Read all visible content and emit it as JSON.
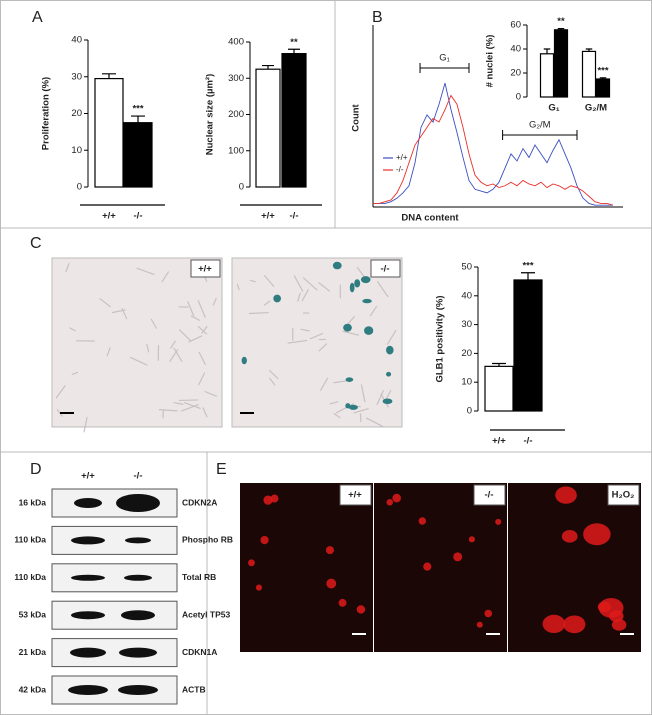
{
  "panel_labels": [
    "A",
    "B",
    "C",
    "D",
    "E"
  ],
  "chart_data": [
    {
      "type": "bar",
      "ylabel": "Proliferation (%)",
      "categories": [
        "+/+",
        "-/-"
      ],
      "values": [
        29.5,
        17.5
      ],
      "errors": [
        1.3,
        1.8
      ],
      "colors": [
        "#ffffff",
        "#000000"
      ],
      "annotations": [
        null,
        "***"
      ],
      "ylim": [
        0,
        40
      ],
      "yticks": [
        0,
        10,
        20,
        30,
        40
      ]
    },
    {
      "type": "bar",
      "ylabel": "Nuclear size (µm²)",
      "categories": [
        "+/+",
        "-/-"
      ],
      "values": [
        325,
        368
      ],
      "errors": [
        10,
        12
      ],
      "colors": [
        "#ffffff",
        "#000000"
      ],
      "annotations": [
        null,
        "**"
      ],
      "ylim": [
        0,
        400
      ],
      "yticks": [
        0,
        100,
        200,
        300,
        400
      ]
    },
    {
      "type": "line",
      "ylabel": "Count",
      "xlabel": "DNA content",
      "xlim": [
        0,
        100
      ],
      "ylim": [
        0,
        100
      ],
      "x": [
        0,
        2.5,
        5,
        7.5,
        10,
        12.5,
        15,
        17.5,
        20,
        22.5,
        25,
        27.5,
        30,
        32.5,
        35,
        37.5,
        40,
        42.5,
        45,
        47.5,
        50,
        52.5,
        55,
        57.5,
        60,
        62.5,
        65,
        67.5,
        70,
        72.5,
        75,
        77.5,
        80,
        82.5,
        85,
        87.5,
        90,
        92.5,
        95,
        97.5,
        100
      ],
      "series": [
        {
          "name": "+/+",
          "color": "#3a4fc0",
          "values": [
            2,
            2,
            2,
            3,
            5,
            8,
            12,
            25,
            45,
            52,
            48,
            58,
            70,
            55,
            42,
            28,
            15,
            10,
            9,
            8,
            10,
            14,
            22,
            30,
            26,
            33,
            28,
            35,
            30,
            25,
            32,
            38,
            30,
            22,
            12,
            5,
            2,
            1,
            1,
            1,
            1
          ]
        },
        {
          "name": "-/-",
          "color": "#e8302a",
          "values": [
            2,
            2,
            3,
            4,
            8,
            15,
            25,
            35,
            40,
            45,
            50,
            48,
            55,
            63,
            58,
            45,
            30,
            18,
            14,
            12,
            13,
            11,
            12,
            14,
            12,
            15,
            13,
            12,
            14,
            11,
            13,
            12,
            10,
            12,
            11,
            9,
            6,
            3,
            2,
            2,
            1
          ]
        }
      ],
      "annotations": [
        {
          "text": "G₁",
          "x": [
            19.6,
            40
          ],
          "y": 78.5
        },
        {
          "text": "G₂/M",
          "x": [
            54,
            85
          ],
          "y": 40.7
        }
      ]
    },
    {
      "type": "bar",
      "ylabel": "# nuclei (%)",
      "categories": [
        "G₁",
        "G₂/M"
      ],
      "series": [
        {
          "color": "#ffffff",
          "values": [
            36,
            38
          ],
          "errors": [
            4,
            2
          ]
        },
        {
          "color": "#000000",
          "values": [
            56,
            15
          ],
          "errors": [
            1,
            1
          ]
        }
      ],
      "annotations": [
        "**",
        "***"
      ],
      "ylim": [
        0,
        60
      ],
      "yticks": [
        0,
        20,
        40,
        60
      ]
    },
    {
      "type": "bar",
      "ylabel": "GLB1 positivity (%)",
      "categories": [
        "+/+",
        "-/-"
      ],
      "values": [
        15.5,
        45.5
      ],
      "errors": [
        1,
        2.5
      ],
      "colors": [
        "#ffffff",
        "#000000"
      ],
      "annotations": [
        null,
        "***"
      ],
      "ylim": [
        0,
        50
      ],
      "yticks": [
        0,
        10,
        20,
        30,
        40,
        50
      ]
    }
  ],
  "panel_c_images": [
    "+/+",
    "-/-"
  ],
  "blot": {
    "columns": [
      "+/+",
      "-/-"
    ],
    "rows": [
      {
        "size": "16 kDa",
        "label": "CDKN2A"
      },
      {
        "size": "110 kDa",
        "label": "Phospho RB"
      },
      {
        "size": "110 kDa",
        "label": "Total RB"
      },
      {
        "size": "53 kDa",
        "label": "Acetyl TP53"
      },
      {
        "size": "21 kDa",
        "label": "CDKN1A"
      },
      {
        "size": "42 kDa",
        "label": "ACTB"
      }
    ]
  },
  "panel_e_images": [
    "+/+",
    "-/-",
    "H₂O₂"
  ]
}
